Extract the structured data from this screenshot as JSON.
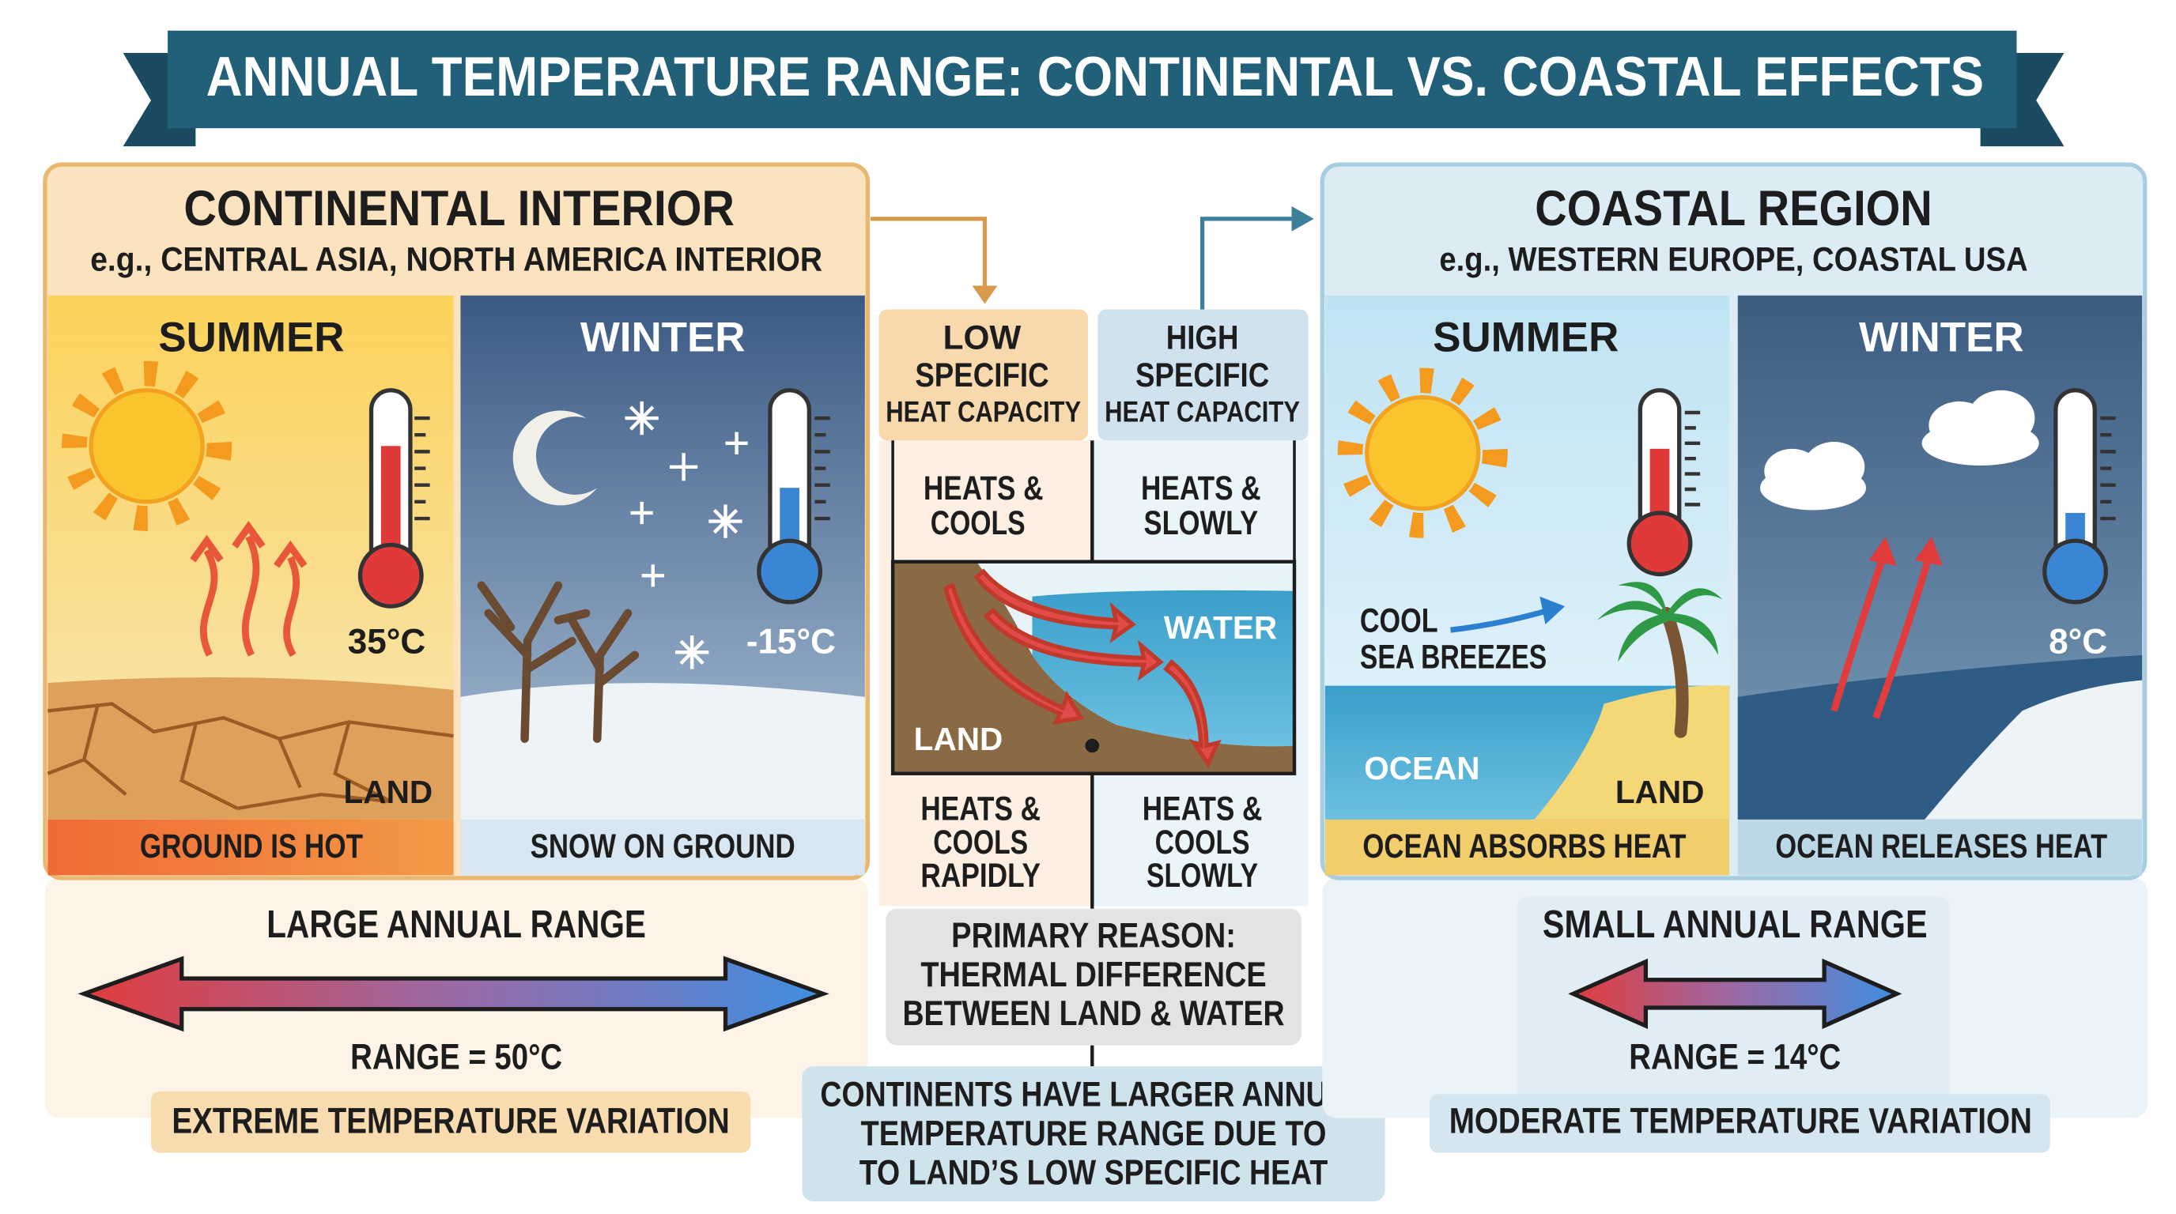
{
  "header": {
    "title": "ANNUAL TEMPERATURE RANGE: CONTINENTAL VS. COASTAL EFFECTS"
  },
  "continental": {
    "title": "CONTINENTAL INTERIOR",
    "subtitle": "e.g., CENTRAL ASIA, NORTH AMERICA INTERIOR",
    "summer": {
      "label": "SUMMER",
      "temperature": "35°C",
      "ground": "LAND",
      "caption": "GROUND IS HOT"
    },
    "winter": {
      "label": "WINTER",
      "temperature": "-15°C",
      "caption": "SNOW ON GROUND"
    },
    "range_title": "LARGE ANNUAL RANGE",
    "range": "RANGE = 50°C",
    "variation": "EXTREME TEMPERATURE VARIATION"
  },
  "center": {
    "low": {
      "title": [
        "LOW",
        "SPECIFIC",
        "HEAT CAPACITY"
      ],
      "top_note": [
        "HEATS &",
        "COOLS"
      ],
      "bottom_note": [
        "HEATS &",
        "COOLS",
        "RAPIDLY"
      ]
    },
    "high": {
      "title": [
        "HIGH",
        "SPECIFIC",
        "HEAT CAPACITY"
      ],
      "top_note": [
        "HEATS &",
        "SLOWLY"
      ],
      "bottom_note": [
        "HEATS &",
        "COOLS",
        "SLOWLY"
      ]
    },
    "diagram": {
      "water": "WATER",
      "land": "LAND"
    },
    "primary_reason": [
      "PRIMARY REASON:",
      "THERMAL DIFFERENCE",
      "BETWEEN LAND & WATER"
    ],
    "conclusion": [
      "CONTINENTS HAVE LARGER ANNUAL",
      "TEMPERATURE RANGE DUE TO",
      "TO LAND’S LOW SPECIFIC HEAT"
    ]
  },
  "coastal": {
    "title": "COASTAL REGION",
    "subtitle": "e.g., WESTERN EUROPE, COASTAL USA",
    "summer": {
      "label": "SUMMER",
      "breeze": [
        "COOL",
        "SEA BREEZES"
      ],
      "ocean": "OCEAN",
      "land": "LAND",
      "caption": "OCEAN ABSORBS HEAT"
    },
    "winter": {
      "label": "WINTER",
      "temperature": "8°C",
      "caption": "OCEAN RELEASES HEAT"
    },
    "range_title": "SMALL ANNUAL RANGE",
    "range": "RANGE = 14°C",
    "variation": "MODERATE TEMPERATURE VARIATION"
  }
}
